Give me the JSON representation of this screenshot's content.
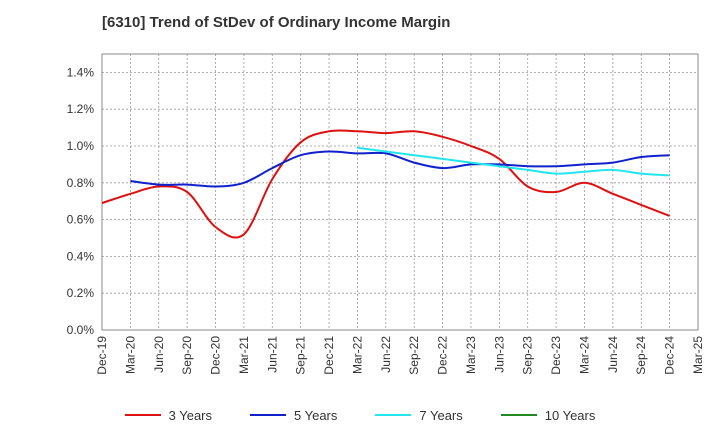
{
  "chart_data": {
    "type": "line",
    "title": "[6310]  Trend of StDev of Ordinary Income Margin",
    "xlabel": "",
    "ylabel": "",
    "ylim": [
      0,
      1.5
    ],
    "y_ticks": [
      "0.0%",
      "0.2%",
      "0.4%",
      "0.6%",
      "0.8%",
      "1.0%",
      "1.2%",
      "1.4%"
    ],
    "y_tick_values": [
      0,
      0.2,
      0.4,
      0.6,
      0.8,
      1.0,
      1.2,
      1.4
    ],
    "x_ticks": [
      "Dec-19",
      "Mar-20",
      "Jun-20",
      "Sep-20",
      "Dec-20",
      "Mar-21",
      "Jun-21",
      "Sep-21",
      "Dec-21",
      "Mar-22",
      "Jun-22",
      "Sep-22",
      "Dec-22",
      "Mar-23",
      "Jun-23",
      "Sep-23",
      "Dec-23",
      "Mar-24",
      "Jun-24",
      "Sep-24",
      "Dec-24",
      "Mar-25"
    ],
    "grid": true,
    "legend_position": "bottom",
    "series": [
      {
        "name": "3 Years",
        "color": "#dd1111",
        "values": [
          0.69,
          0.74,
          0.78,
          0.75,
          0.56,
          0.52,
          0.82,
          1.02,
          1.08,
          1.08,
          1.07,
          1.08,
          1.05,
          1.0,
          0.93,
          0.78,
          0.75,
          0.8,
          0.74,
          0.68,
          0.62
        ]
      },
      {
        "name": "5 Years",
        "color": "#1122cc",
        "values": [
          null,
          0.81,
          0.79,
          0.79,
          0.78,
          0.8,
          0.88,
          0.95,
          0.97,
          0.96,
          0.96,
          0.91,
          0.88,
          0.9,
          0.9,
          0.89,
          0.89,
          0.9,
          0.91,
          0.94,
          0.95
        ]
      },
      {
        "name": "7 Years",
        "color": "#22e5ee",
        "values": [
          null,
          null,
          null,
          null,
          null,
          null,
          null,
          null,
          null,
          0.99,
          0.97,
          0.95,
          0.93,
          0.91,
          0.89,
          0.87,
          0.85,
          0.86,
          0.87,
          0.85,
          0.84
        ]
      },
      {
        "name": "10 Years",
        "color": "#228822",
        "values": [
          null,
          null,
          null,
          null,
          null,
          null,
          null,
          null,
          null,
          null,
          null,
          null,
          null,
          null,
          null,
          null,
          null,
          null,
          null,
          null,
          null
        ]
      }
    ]
  }
}
